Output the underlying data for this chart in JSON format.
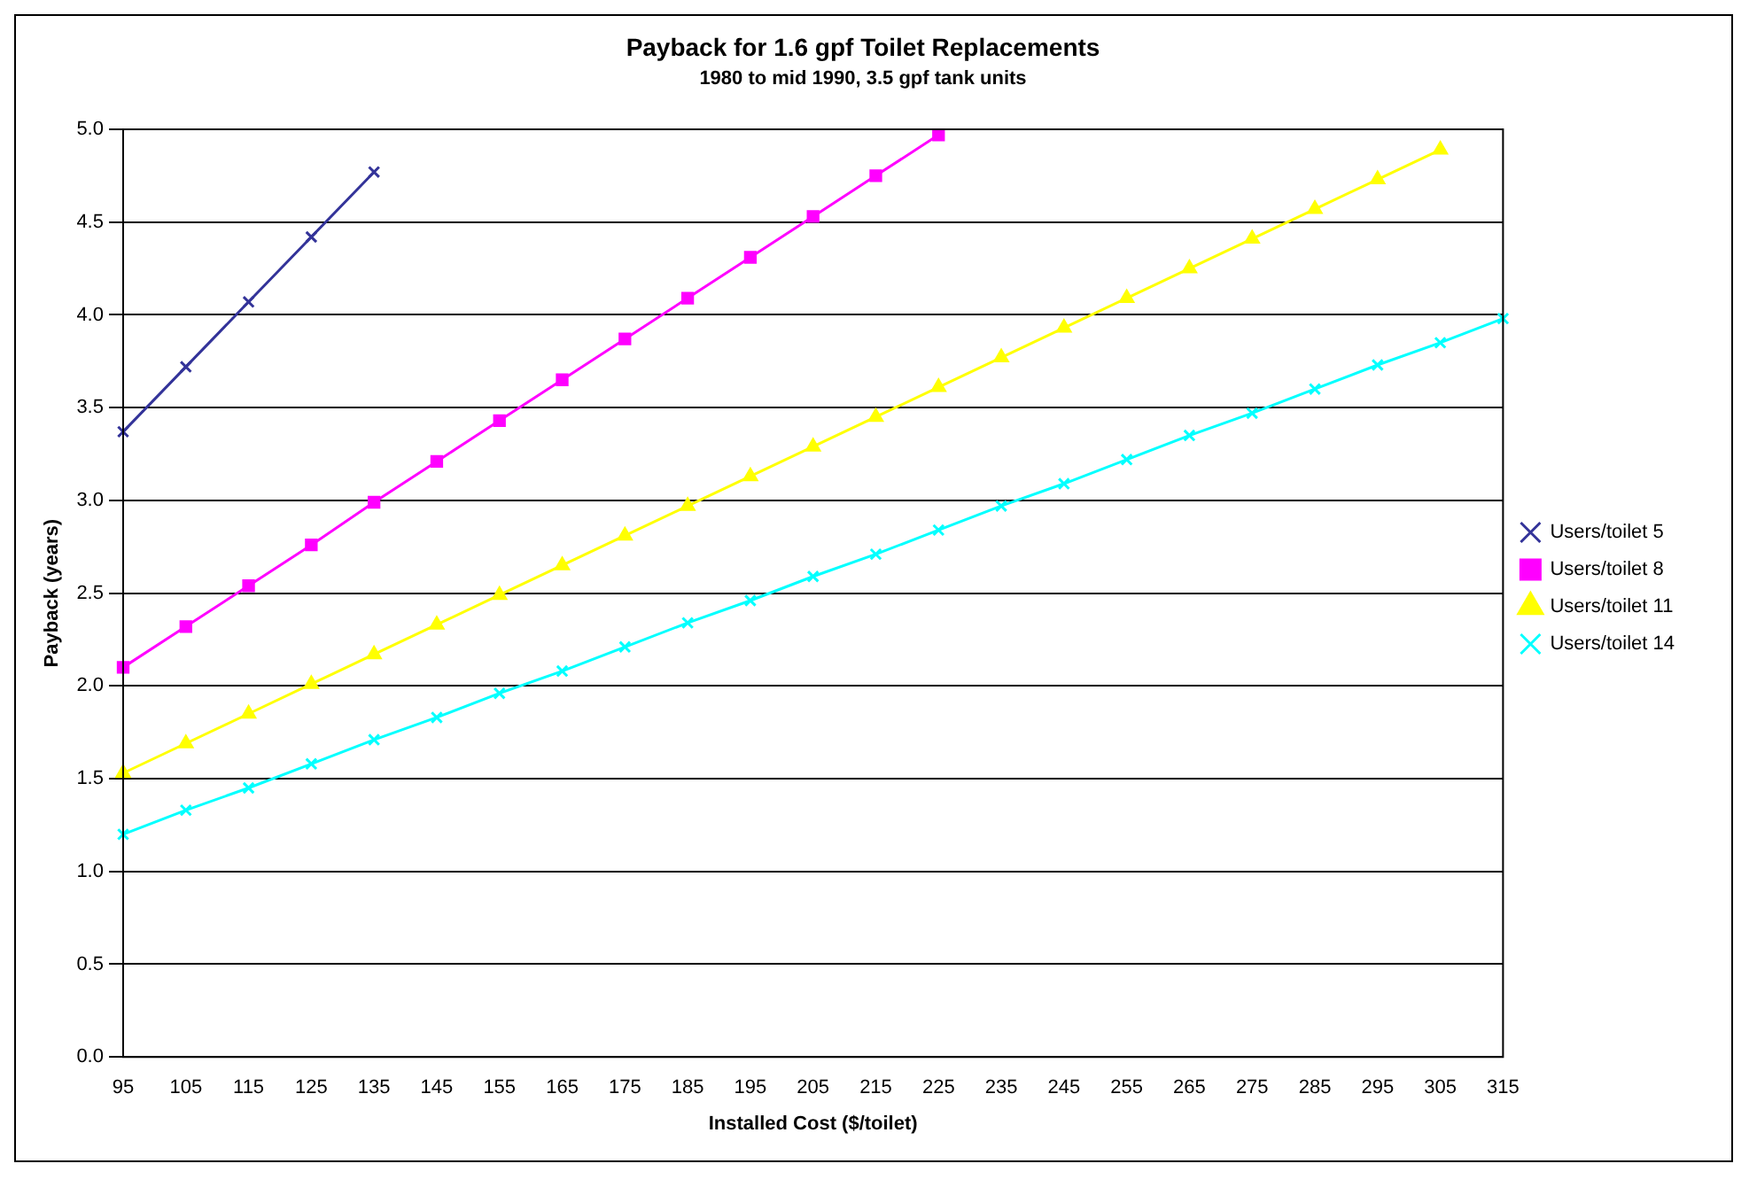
{
  "chart_data": {
    "type": "line",
    "title": "Payback for 1.6 gpf Toilet Replacements",
    "subtitle": "1980 to mid 1990, 3.5 gpf tank units",
    "xlabel": "Installed Cost ($/toilet)",
    "ylabel": "Payback (years)",
    "categories": [
      "95",
      "105",
      "115",
      "125",
      "135",
      "145",
      "155",
      "165",
      "175",
      "185",
      "195",
      "205",
      "215",
      "225",
      "235",
      "245",
      "255",
      "265",
      "275",
      "285",
      "295",
      "305",
      "315"
    ],
    "ylim": [
      0,
      5
    ],
    "yticks": [
      {
        "value": 0,
        "label": "0.0"
      },
      {
        "value": 0.5,
        "label": "0.5"
      },
      {
        "value": 1,
        "label": "1.0"
      },
      {
        "value": 1.5,
        "label": "1.5"
      },
      {
        "value": 2,
        "label": "2.0"
      },
      {
        "value": 2.5,
        "label": "2.5"
      },
      {
        "value": 3,
        "label": "3.0"
      },
      {
        "value": 3.5,
        "label": "3.5"
      },
      {
        "value": 4,
        "label": "4.0"
      },
      {
        "value": 4.5,
        "label": "4.5"
      },
      {
        "value": 5,
        "label": "5.0"
      }
    ],
    "grid": "y",
    "legend": "right",
    "line_style": "solid",
    "series": [
      {
        "name": "Users/toilet 5",
        "color": "#333399",
        "marker": "cross",
        "values": [
          3.37,
          3.72,
          4.07,
          4.42,
          4.77,
          null,
          null,
          null,
          null,
          null,
          null,
          null,
          null,
          null,
          null,
          null,
          null,
          null,
          null,
          null,
          null,
          null,
          null
        ]
      },
      {
        "name": "Users/toilet 8",
        "color": "#ff00ff",
        "marker": "square",
        "values": [
          2.1,
          2.32,
          2.54,
          2.76,
          2.99,
          3.21,
          3.43,
          3.65,
          3.87,
          4.09,
          4.31,
          4.53,
          4.75,
          4.97,
          null,
          null,
          null,
          null,
          null,
          null,
          null,
          null,
          null
        ]
      },
      {
        "name": "Users/toilet 11",
        "color": "#ffff00",
        "marker": "triangle",
        "values": [
          1.53,
          1.69,
          1.85,
          2.01,
          2.17,
          2.33,
          2.49,
          2.65,
          2.81,
          2.97,
          3.13,
          3.29,
          3.45,
          3.61,
          3.77,
          3.93,
          4.09,
          4.25,
          4.41,
          4.57,
          4.73,
          4.89,
          null
        ]
      },
      {
        "name": "Users/toilet 14",
        "color": "#00ffff",
        "marker": "cross",
        "values": [
          1.2,
          1.33,
          1.45,
          1.58,
          1.71,
          1.83,
          1.96,
          2.08,
          2.21,
          2.34,
          2.46,
          2.59,
          2.71,
          2.84,
          2.97,
          3.09,
          3.22,
          3.35,
          3.47,
          3.6,
          3.73,
          3.85,
          3.98
        ]
      }
    ]
  }
}
